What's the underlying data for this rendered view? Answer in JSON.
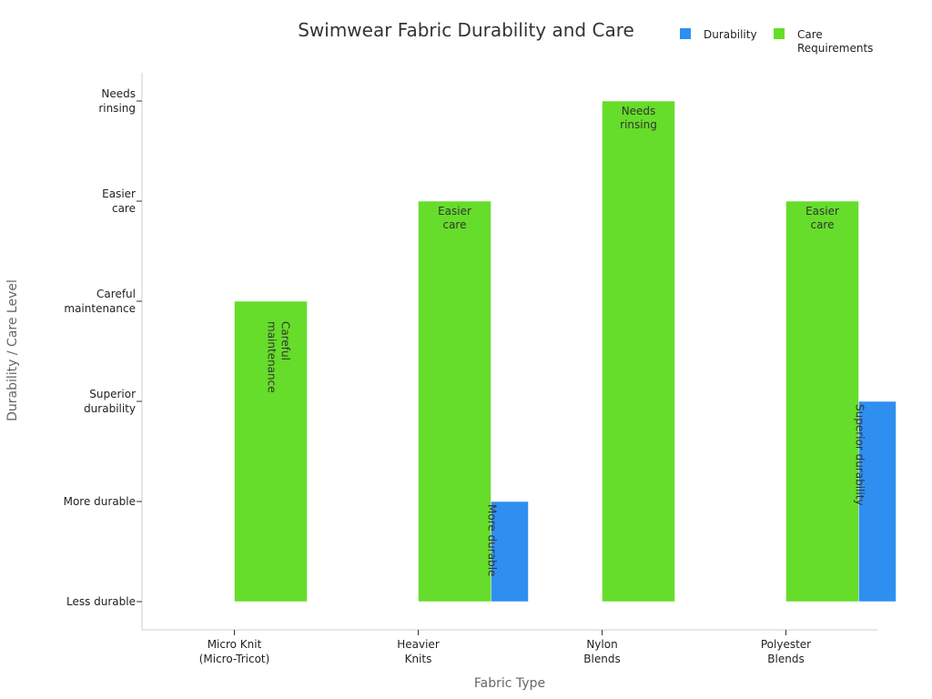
{
  "chart_data": {
    "type": "bar",
    "title": "Swimwear Fabric Durability and Care",
    "xlabel": "Fabric Type",
    "ylabel": "Durability / Care Level",
    "categories": [
      "Micro Knit (Micro-Tricot)",
      "Heavier Knits",
      "Nylon Blends",
      "Polyester Blends"
    ],
    "y_levels": [
      "Less durable",
      "More durable",
      "Superior durability",
      "Careful maintenance",
      "Easier care",
      "Needs rinsing"
    ],
    "ylim": [
      0,
      5
    ],
    "grid": false,
    "legend_position": "top-right",
    "series": [
      {
        "name": "Durability",
        "color": "#2f8ff0",
        "values": [
          0,
          1,
          null,
          2
        ],
        "labels": [
          null,
          "More durable",
          null,
          "Superior durability"
        ]
      },
      {
        "name": "Care Requirements",
        "color": "#66dd2a",
        "values": [
          3,
          4,
          5,
          4
        ],
        "labels": [
          "Careful maintenance",
          "Easier care",
          "Needs rinsing",
          "Easier care"
        ]
      }
    ]
  }
}
